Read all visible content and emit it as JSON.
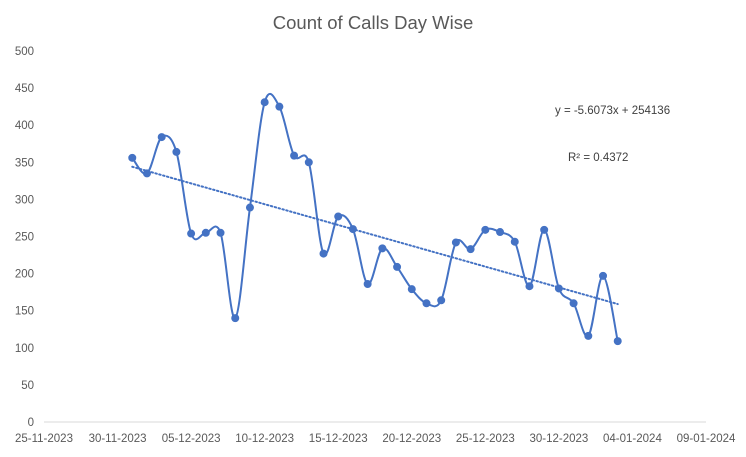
{
  "chart_data": {
    "type": "line",
    "title": "Count of Calls Day Wise",
    "xlabel": "",
    "ylabel": "",
    "ylim": [
      0,
      500
    ],
    "yticks": [
      0,
      50,
      100,
      150,
      200,
      250,
      300,
      350,
      400,
      450,
      500
    ],
    "xlim": [
      "25-11-2023",
      "09-01-2024"
    ],
    "xticks": [
      "25-11-2023",
      "30-11-2023",
      "05-12-2023",
      "10-12-2023",
      "15-12-2023",
      "20-12-2023",
      "25-12-2023",
      "30-12-2023",
      "04-01-2024",
      "09-01-2024"
    ],
    "grid": false,
    "legend": "none",
    "series": [
      {
        "color": "#4472C4",
        "smoothed": true,
        "markers": true,
        "points": [
          {
            "x": "01-12-2023",
            "y": 356
          },
          {
            "x": "02-12-2023",
            "y": 335
          },
          {
            "x": "03-12-2023",
            "y": 384
          },
          {
            "x": "04-12-2023",
            "y": 364
          },
          {
            "x": "05-12-2023",
            "y": 254
          },
          {
            "x": "06-12-2023",
            "y": 255
          },
          {
            "x": "07-12-2023",
            "y": 255
          },
          {
            "x": "08-12-2023",
            "y": 140
          },
          {
            "x": "09-12-2023",
            "y": 289
          },
          {
            "x": "10-12-2023",
            "y": 431
          },
          {
            "x": "11-12-2023",
            "y": 425
          },
          {
            "x": "12-12-2023",
            "y": 359
          },
          {
            "x": "13-12-2023",
            "y": 350
          },
          {
            "x": "14-12-2023",
            "y": 227
          },
          {
            "x": "15-12-2023",
            "y": 277
          },
          {
            "x": "16-12-2023",
            "y": 260
          },
          {
            "x": "17-12-2023",
            "y": 186
          },
          {
            "x": "18-12-2023",
            "y": 234
          },
          {
            "x": "19-12-2023",
            "y": 209
          },
          {
            "x": "20-12-2023",
            "y": 179
          },
          {
            "x": "21-12-2023",
            "y": 160
          },
          {
            "x": "22-12-2023",
            "y": 164
          },
          {
            "x": "23-12-2023",
            "y": 242
          },
          {
            "x": "24-12-2023",
            "y": 233
          },
          {
            "x": "25-12-2023",
            "y": 259
          },
          {
            "x": "26-12-2023",
            "y": 256
          },
          {
            "x": "27-12-2023",
            "y": 243
          },
          {
            "x": "28-12-2023",
            "y": 183
          },
          {
            "x": "29-12-2023",
            "y": 259
          },
          {
            "x": "30-12-2023",
            "y": 180
          },
          {
            "x": "31-12-2023",
            "y": 160
          },
          {
            "x": "01-01-2024",
            "y": 116
          },
          {
            "x": "02-01-2024",
            "y": 197
          },
          {
            "x": "03-01-2024",
            "y": 109
          }
        ]
      }
    ],
    "trendline": {
      "type": "linear",
      "color": "#4472C4",
      "style": "dotted",
      "slope": -5.6073,
      "intercept": 254136,
      "x_range": [
        "01-12-2023",
        "03-01-2024"
      ],
      "equation_label": "y = -5.6073x + 254136",
      "r2_label": "R² = 0.4372"
    }
  }
}
